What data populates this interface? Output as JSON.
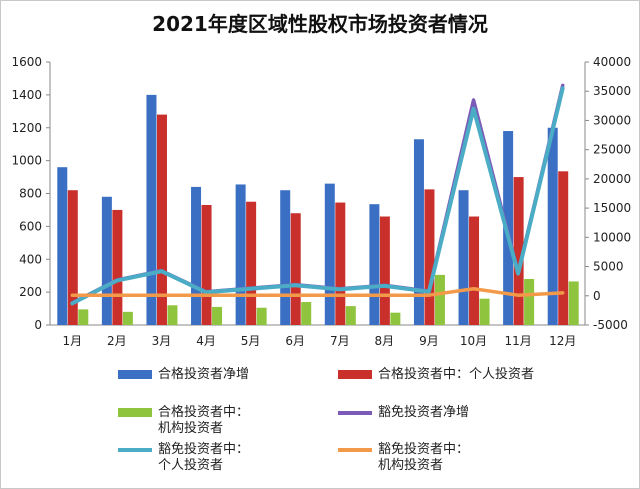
{
  "chart_data": {
    "type": "bar+line",
    "title": "2021年度区域性股权市场投资者情况",
    "categories": [
      "1月",
      "2月",
      "3月",
      "4月",
      "5月",
      "6月",
      "7月",
      "8月",
      "9月",
      "10月",
      "11月",
      "12月"
    ],
    "left_axis": {
      "min": 0,
      "max": 1600,
      "ticks": [
        0,
        200,
        400,
        600,
        800,
        1000,
        1200,
        1400,
        1600
      ]
    },
    "right_axis": {
      "min": -5000,
      "max": 40000,
      "ticks": [
        -5000,
        0,
        5000,
        10000,
        15000,
        20000,
        25000,
        30000,
        35000,
        40000
      ]
    },
    "bar_series": [
      {
        "name": "合格投资者净增",
        "color": "#3a6fc4",
        "values": [
          960,
          780,
          1400,
          840,
          855,
          820,
          860,
          735,
          1130,
          820,
          1180,
          1200
        ]
      },
      {
        "name": "合格投资者中：个人投资者",
        "color": "#c9302c",
        "values": [
          820,
          700,
          1280,
          730,
          750,
          680,
          745,
          660,
          825,
          660,
          900,
          935
        ]
      },
      {
        "name": "合格投资者中：\n机构投资者",
        "color": "#8fc43f",
        "values": [
          95,
          80,
          120,
          110,
          105,
          140,
          115,
          75,
          305,
          160,
          280,
          265
        ]
      }
    ],
    "line_series": [
      {
        "name": "豁免投资者净增",
        "color": "#7b5ab8",
        "values": [
          -1200,
          2700,
          4300,
          700,
          1300,
          1900,
          1200,
          1800,
          800,
          33500,
          4000,
          36000
        ]
      },
      {
        "name": "豁免投资者中：\n个人投资者",
        "color": "#4aacc5",
        "values": [
          -1300,
          2600,
          4200,
          600,
          1200,
          1800,
          1100,
          1700,
          700,
          32000,
          3800,
          35500
        ]
      },
      {
        "name": "豁免投资者中：\n机构投资者",
        "color": "#f39a4a",
        "values": [
          100,
          100,
          100,
          100,
          100,
          100,
          100,
          100,
          100,
          1200,
          100,
          500
        ]
      }
    ],
    "grid": false,
    "legend_position": "bottom"
  }
}
